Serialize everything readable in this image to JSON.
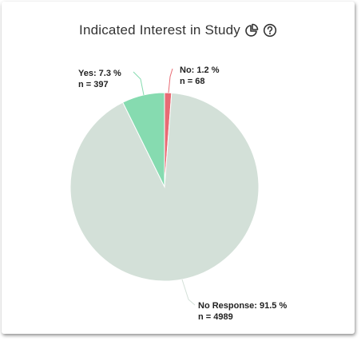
{
  "title": "Indicated Interest in Study",
  "icons": {
    "chart_type": "pie-chart-icon",
    "help": "help-circle-icon"
  },
  "colors": {
    "no": "#e86b74",
    "yes": "#86dbb0",
    "no_response": "#d3e0d8"
  },
  "chart_data": {
    "type": "pie",
    "title": "Indicated Interest in Study",
    "slices": [
      {
        "label": "No",
        "percent": 1.2,
        "n": 68,
        "color": "#e86b74",
        "line1": "No: 1.2 %",
        "line2": "n = 68"
      },
      {
        "label": "No Response",
        "percent": 91.5,
        "n": 4989,
        "color": "#d3e0d8",
        "line1": "No Response: 91.5 %",
        "line2": "n = 4989"
      },
      {
        "label": "Yes",
        "percent": 7.3,
        "n": 397,
        "color": "#86dbb0",
        "line1": "Yes: 7.3 %",
        "line2": "n = 397"
      }
    ]
  }
}
